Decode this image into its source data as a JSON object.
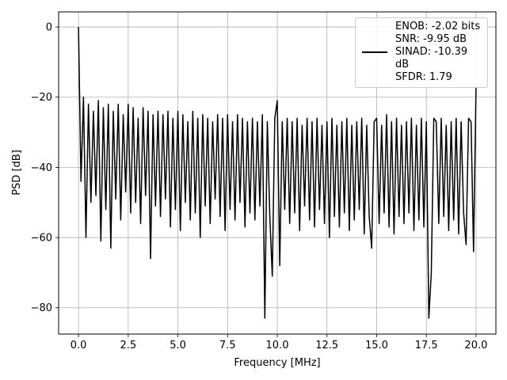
{
  "chart_data": {
    "type": "line",
    "xlabel": "Frequency [MHz]",
    "ylabel": "PSD [dB]",
    "xlim": [
      -1.0,
      21.0
    ],
    "ylim": [
      -87.5,
      4.3
    ],
    "xticks": [
      {
        "value": 0,
        "label": "0.0"
      },
      {
        "value": 2.5,
        "label": "2.5"
      },
      {
        "value": 5,
        "label": "5.0"
      },
      {
        "value": 7.5,
        "label": "7.5"
      },
      {
        "value": 10,
        "label": "10.0"
      },
      {
        "value": 12.5,
        "label": "12.5"
      },
      {
        "value": 15,
        "label": "15.0"
      },
      {
        "value": 17.5,
        "label": "17.5"
      },
      {
        "value": 20,
        "label": "20.0"
      }
    ],
    "yticks": [
      0,
      {
        "value": -20,
        "label": "−20"
      },
      {
        "value": -40,
        "label": "−40"
      },
      {
        "value": -60,
        "label": "−60"
      },
      {
        "value": -80,
        "label": "−80"
      }
    ],
    "grid": true,
    "legend": "upper right",
    "x": [
      0,
      0.125,
      0.25,
      0.375,
      0.5,
      0.625,
      0.75,
      0.875,
      1,
      1.125,
      1.25,
      1.375,
      1.5,
      1.625,
      1.75,
      1.875,
      2,
      2.125,
      2.25,
      2.375,
      2.5,
      2.625,
      2.75,
      2.875,
      3,
      3.125,
      3.25,
      3.375,
      3.5,
      3.625,
      3.75,
      3.875,
      4,
      4.125,
      4.25,
      4.375,
      4.5,
      4.625,
      4.75,
      4.875,
      5,
      5.125,
      5.25,
      5.375,
      5.5,
      5.625,
      5.75,
      5.875,
      6,
      6.125,
      6.25,
      6.375,
      6.5,
      6.625,
      6.75,
      6.875,
      7,
      7.125,
      7.25,
      7.375,
      7.5,
      7.625,
      7.75,
      7.875,
      8,
      8.125,
      8.25,
      8.375,
      8.5,
      8.625,
      8.75,
      8.875,
      9,
      9.125,
      9.25,
      9.375,
      9.5,
      9.625,
      9.75,
      9.875,
      10,
      10.125,
      10.25,
      10.375,
      10.5,
      10.625,
      10.75,
      10.875,
      11,
      11.125,
      11.25,
      11.375,
      11.5,
      11.625,
      11.75,
      11.875,
      12,
      12.125,
      12.25,
      12.375,
      12.5,
      12.625,
      12.75,
      12.875,
      13,
      13.125,
      13.25,
      13.375,
      13.5,
      13.625,
      13.75,
      13.875,
      14,
      14.125,
      14.25,
      14.375,
      14.5,
      14.625,
      14.75,
      14.875,
      15,
      15.125,
      15.25,
      15.375,
      15.5,
      15.625,
      15.75,
      15.875,
      16,
      16.125,
      16.25,
      16.375,
      16.5,
      16.625,
      16.75,
      16.875,
      17,
      17.125,
      17.25,
      17.375,
      17.5,
      17.625,
      17.75,
      17.875,
      18,
      18.125,
      18.25,
      18.375,
      18.5,
      18.625,
      18.75,
      18.875,
      19,
      19.125,
      19.25,
      19.375,
      19.5,
      19.625,
      19.75,
      19.875,
      20
    ],
    "series": [
      {
        "name": "ENOB: -2.02 bits\nSNR: -9.95 dB\nSINAD: -10.39 dB\nSFDR: 1.79",
        "color": "#000000",
        "values": [
          0,
          -44,
          -20,
          -60,
          -22,
          -50,
          -24,
          -48,
          -21,
          -61,
          -23,
          -52,
          -22,
          -63,
          -24,
          -49,
          -22,
          -55,
          -25,
          -47,
          -22,
          -53,
          -23,
          -50,
          -26,
          -56,
          -23,
          -48,
          -24,
          -66,
          -25,
          -51,
          -24,
          -54,
          -25,
          -49,
          -24,
          -57,
          -26,
          -52,
          -24,
          -58,
          -25,
          -50,
          -27,
          -55,
          -24,
          -53,
          -26,
          -60,
          -25,
          -51,
          -26,
          -56,
          -27,
          -49,
          -25,
          -54,
          -26,
          -58,
          -25,
          -52,
          -27,
          -55,
          -25,
          -50,
          -26,
          -57,
          -27,
          -53,
          -26,
          -55,
          -27,
          -51,
          -25,
          -83,
          -27,
          -54,
          -71,
          -26,
          -21,
          -68,
          -27,
          -52,
          -26,
          -56,
          -27,
          -53,
          -26,
          -58,
          -28,
          -51,
          -26,
          -55,
          -27,
          -57,
          -26,
          -52,
          -28,
          -56,
          -27,
          -60,
          -26,
          -54,
          -28,
          -57,
          -27,
          -53,
          -26,
          -58,
          -28,
          -55,
          -27,
          -52,
          -26,
          -59,
          -28,
          -54,
          -63,
          -27,
          -26,
          -56,
          -28,
          -53,
          -25,
          -57,
          -27,
          -59,
          -26,
          -54,
          -28,
          -56,
          -27,
          -53,
          -26,
          -58,
          -28,
          -55,
          -26,
          -57,
          -27,
          -83,
          -70,
          -26,
          -27,
          -56,
          -26,
          -54,
          -28,
          -58,
          -27,
          -55,
          -26,
          -59,
          -27,
          -53,
          -62,
          -26,
          -27,
          -64,
          -17
        ]
      }
    ]
  }
}
